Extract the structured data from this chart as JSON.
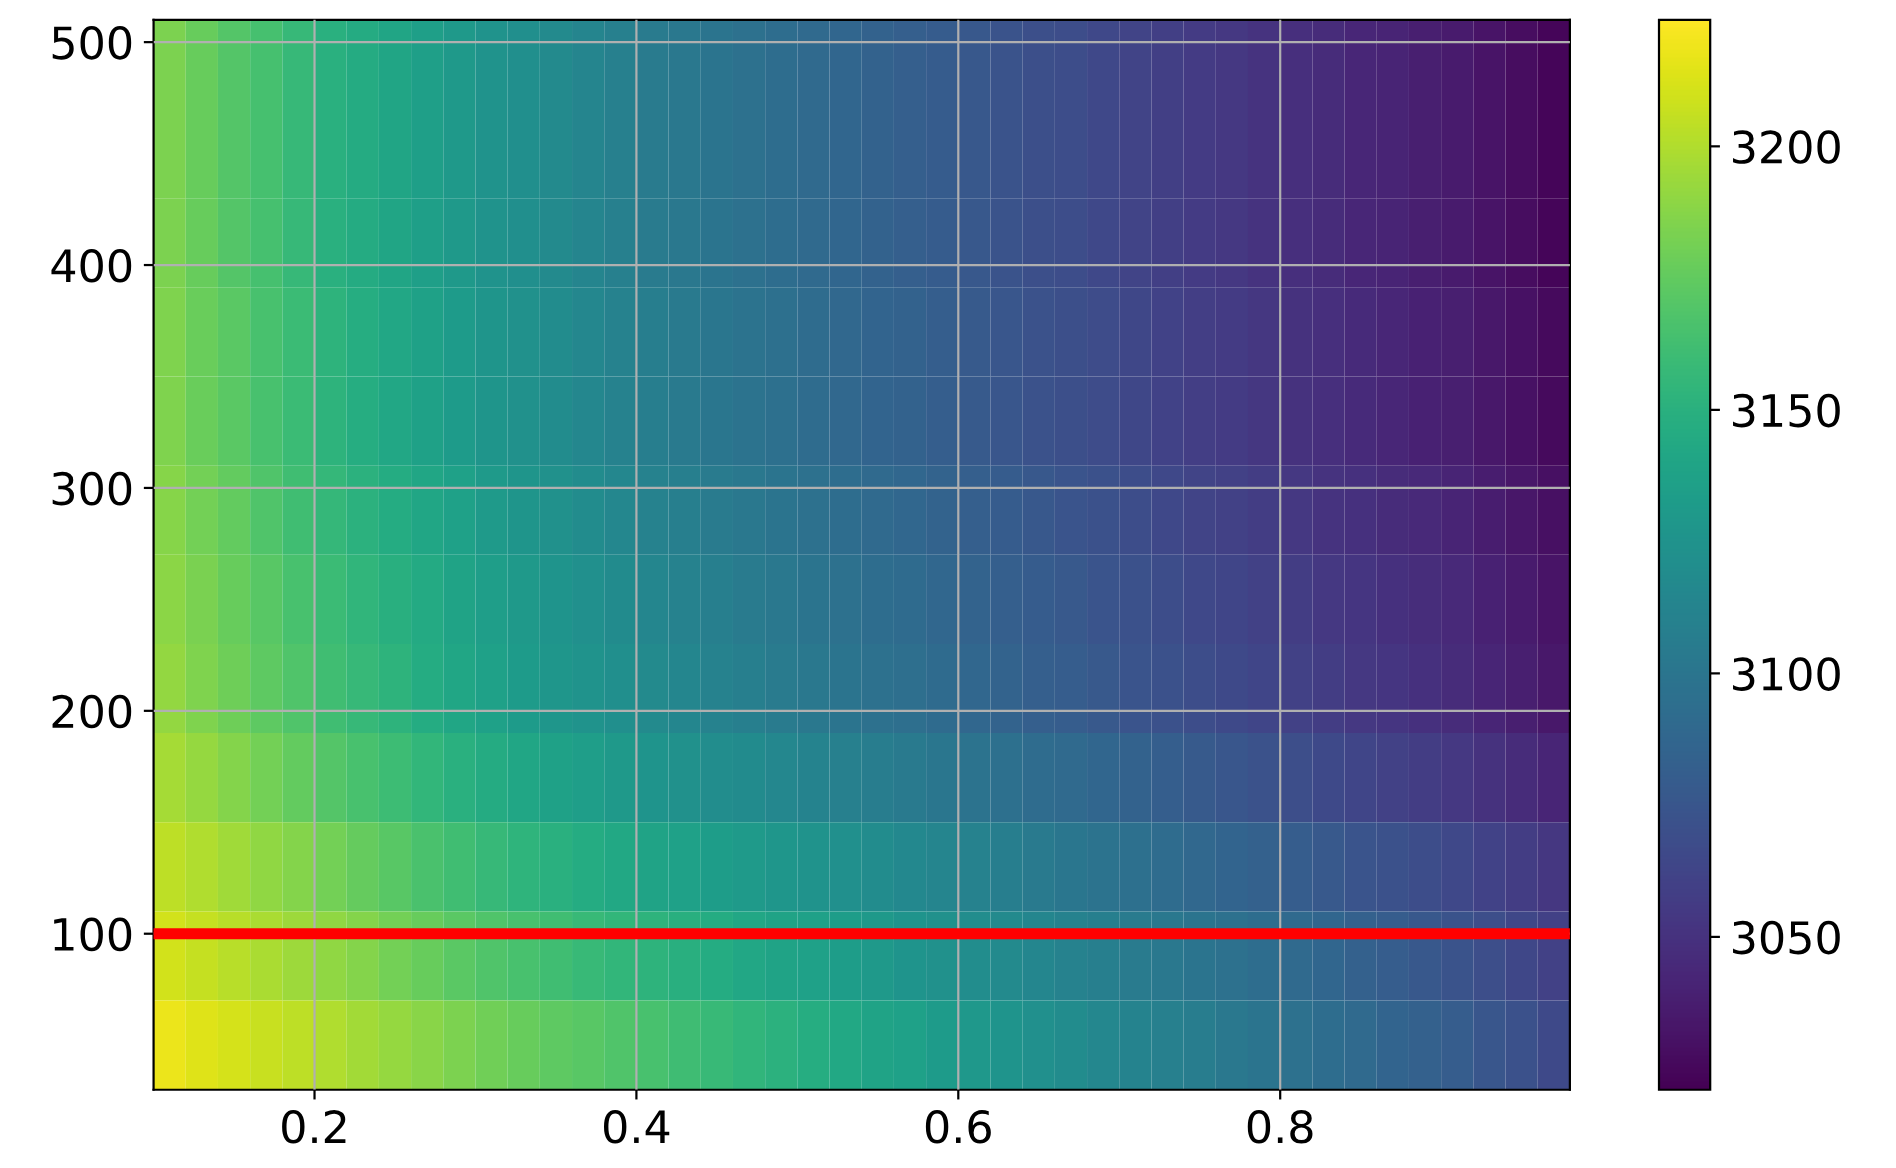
{
  "chart_data": {
    "type": "heatmap",
    "x": [
      0.11,
      0.13,
      0.15,
      0.17,
      0.19,
      0.21,
      0.23,
      0.25,
      0.27,
      0.29,
      0.31,
      0.33,
      0.35,
      0.37,
      0.39,
      0.41,
      0.43,
      0.45,
      0.47,
      0.49,
      0.51,
      0.53,
      0.55,
      0.57,
      0.59,
      0.61,
      0.63,
      0.65,
      0.67,
      0.69,
      0.71,
      0.73,
      0.75,
      0.77,
      0.79,
      0.81,
      0.83,
      0.85,
      0.87,
      0.89,
      0.91,
      0.93,
      0.95,
      0.97
    ],
    "y": [
      490,
      450,
      410,
      370,
      330,
      290,
      250,
      210,
      170,
      130,
      90,
      50
    ],
    "cells": [
      [
        3184,
        3177,
        3170,
        3164,
        3157,
        3150,
        3145,
        3140,
        3135,
        3130,
        3125,
        3121,
        3117,
        3113,
        3109,
        3105,
        3102,
        3099,
        3096,
        3093,
        3090,
        3087,
        3084,
        3082,
        3079,
        3076,
        3073,
        3070,
        3068,
        3065,
        3062,
        3059,
        3056,
        3054,
        3051,
        3048,
        3046,
        3043,
        3041,
        3038,
        3036,
        3032,
        3028,
        3024
      ],
      [
        3184,
        3177,
        3170,
        3164,
        3157,
        3150,
        3145,
        3140,
        3135,
        3130,
        3125,
        3121,
        3117,
        3113,
        3109,
        3105,
        3102,
        3099,
        3096,
        3093,
        3090,
        3087,
        3084,
        3082,
        3079,
        3076,
        3073,
        3070,
        3068,
        3065,
        3062,
        3059,
        3056,
        3054,
        3051,
        3048,
        3046,
        3043,
        3041,
        3038,
        3036,
        3032,
        3028,
        3024
      ],
      [
        3184,
        3177,
        3170,
        3164,
        3157,
        3150,
        3145,
        3140,
        3135,
        3130,
        3125,
        3121,
        3117,
        3113,
        3109,
        3105,
        3102,
        3099,
        3096,
        3093,
        3090,
        3087,
        3084,
        3082,
        3079,
        3076,
        3073,
        3070,
        3068,
        3065,
        3062,
        3059,
        3056,
        3054,
        3051,
        3048,
        3046,
        3043,
        3041,
        3038,
        3036,
        3032,
        3028,
        3024
      ],
      [
        3185,
        3178,
        3172,
        3165,
        3159,
        3152,
        3147,
        3142,
        3137,
        3132,
        3127,
        3123,
        3119,
        3115,
        3111,
        3107,
        3104,
        3101,
        3098,
        3095,
        3092,
        3089,
        3086,
        3084,
        3081,
        3078,
        3075,
        3072,
        3070,
        3067,
        3064,
        3061,
        3058,
        3056,
        3053,
        3050,
        3048,
        3045,
        3043,
        3040,
        3038,
        3034,
        3030,
        3026
      ],
      [
        3185,
        3178,
        3172,
        3165,
        3159,
        3152,
        3147,
        3142,
        3137,
        3132,
        3127,
        3123,
        3119,
        3115,
        3111,
        3107,
        3104,
        3101,
        3098,
        3095,
        3092,
        3089,
        3086,
        3084,
        3081,
        3078,
        3075,
        3072,
        3070,
        3067,
        3064,
        3061,
        3058,
        3056,
        3053,
        3050,
        3048,
        3045,
        3043,
        3040,
        3038,
        3034,
        3030,
        3026
      ],
      [
        3187,
        3181,
        3175,
        3168,
        3162,
        3156,
        3151,
        3146,
        3141,
        3136,
        3131,
        3127,
        3123,
        3119,
        3115,
        3111,
        3108,
        3105,
        3102,
        3099,
        3096,
        3093,
        3090,
        3088,
        3085,
        3082,
        3079,
        3076,
        3074,
        3071,
        3068,
        3065,
        3062,
        3060,
        3057,
        3054,
        3051,
        3049,
        3046,
        3044,
        3041,
        3037,
        3033,
        3029
      ],
      [
        3189,
        3183,
        3177,
        3171,
        3165,
        3159,
        3154,
        3149,
        3144,
        3139,
        3134,
        3130,
        3126,
        3122,
        3118,
        3114,
        3111,
        3108,
        3105,
        3102,
        3099,
        3096,
        3093,
        3091,
        3088,
        3085,
        3082,
        3079,
        3077,
        3074,
        3071,
        3068,
        3065,
        3063,
        3060,
        3057,
        3054,
        3052,
        3049,
        3047,
        3044,
        3040,
        3036,
        3032
      ],
      [
        3191,
        3185,
        3179,
        3174,
        3168,
        3162,
        3157,
        3152,
        3146,
        3141,
        3136,
        3132,
        3128,
        3125,
        3121,
        3117,
        3114,
        3111,
        3108,
        3105,
        3102,
        3099,
        3096,
        3094,
        3091,
        3088,
        3085,
        3082,
        3080,
        3077,
        3074,
        3071,
        3068,
        3066,
        3063,
        3060,
        3057,
        3054,
        3052,
        3049,
        3046,
        3042,
        3038,
        3034
      ],
      [
        3197,
        3192,
        3186,
        3181,
        3175,
        3170,
        3165,
        3160,
        3155,
        3150,
        3145,
        3141,
        3137,
        3134,
        3130,
        3126,
        3123,
        3120,
        3118,
        3115,
        3112,
        3109,
        3106,
        3104,
        3101,
        3098,
        3095,
        3092,
        3090,
        3087,
        3084,
        3081,
        3078,
        3075,
        3072,
        3069,
        3066,
        3063,
        3060,
        3057,
        3054,
        3050,
        3046,
        3042
      ],
      [
        3204,
        3200,
        3195,
        3190,
        3186,
        3181,
        3176,
        3171,
        3166,
        3162,
        3157,
        3153,
        3150,
        3146,
        3143,
        3139,
        3136,
        3133,
        3131,
        3128,
        3125,
        3122,
        3119,
        3116,
        3113,
        3110,
        3107,
        3104,
        3101,
        3098,
        3095,
        3092,
        3089,
        3086,
        3083,
        3080,
        3077,
        3074,
        3071,
        3068,
        3065,
        3061,
        3057,
        3053
      ],
      [
        3210,
        3206,
        3202,
        3198,
        3194,
        3190,
        3186,
        3181,
        3177,
        3172,
        3168,
        3165,
        3162,
        3158,
        3155,
        3152,
        3149,
        3146,
        3142,
        3139,
        3136,
        3133,
        3130,
        3126,
        3123,
        3120,
        3117,
        3114,
        3111,
        3108,
        3105,
        3102,
        3099,
        3096,
        3093,
        3090,
        3087,
        3083,
        3080,
        3076,
        3073,
        3069,
        3064,
        3060
      ],
      [
        3218,
        3214,
        3211,
        3207,
        3204,
        3200,
        3196,
        3192,
        3188,
        3184,
        3180,
        3177,
        3174,
        3171,
        3168,
        3165,
        3161,
        3158,
        3154,
        3151,
        3147,
        3143,
        3139,
        3136,
        3132,
        3129,
        3126,
        3122,
        3119,
        3115,
        3112,
        3109,
        3106,
        3102,
        3099,
        3096,
        3093,
        3090,
        3086,
        3083,
        3080,
        3075,
        3071,
        3066
      ]
    ],
    "xlim": [
      0.1,
      0.98
    ],
    "ylim": [
      30,
      510
    ],
    "xticks": [
      0.2,
      0.4,
      0.6,
      0.8
    ],
    "yticks": [
      100,
      200,
      300,
      400,
      500
    ],
    "clim": [
      3021,
      3224
    ],
    "cticks": [
      3050,
      3100,
      3150,
      3200
    ],
    "ref_lines": [
      {
        "axis": "y",
        "value": 100,
        "color": "#ff0000"
      }
    ],
    "grid": true
  }
}
